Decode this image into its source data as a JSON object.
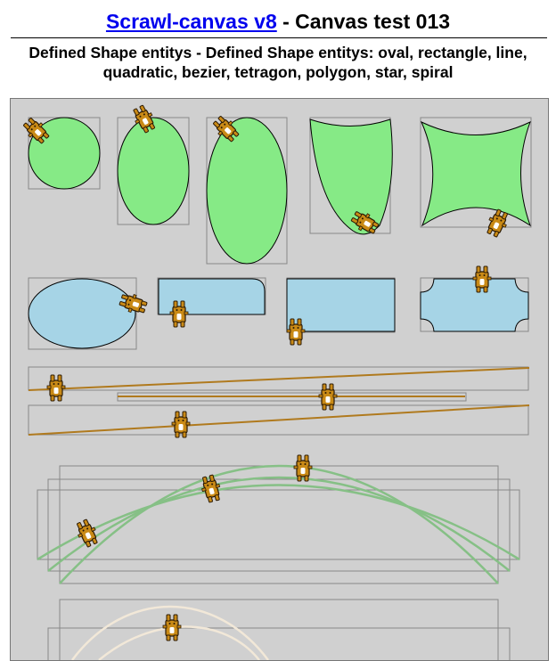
{
  "header": {
    "link_text": "Scrawl-canvas v8",
    "title_suffix": " - Canvas test 013",
    "subtitle": "Defined Shape entitys - Defined Shape entitys: oval, rectangle, line, quadratic, bezier, tetragon, polygon, star, spiral"
  },
  "colors": {
    "canvas_bg": "#d0d0d0",
    "green_fill": "#86ea86",
    "blue_fill": "#a6d4e6",
    "line_stroke": "#b07a1e",
    "quadratic_stroke": "#86c086",
    "bezier_stroke": "#f2e8d8",
    "bbox_stroke": "#888888",
    "link": "#0000ee"
  },
  "icons": {
    "sprite": "bunny-sprite-icon"
  }
}
